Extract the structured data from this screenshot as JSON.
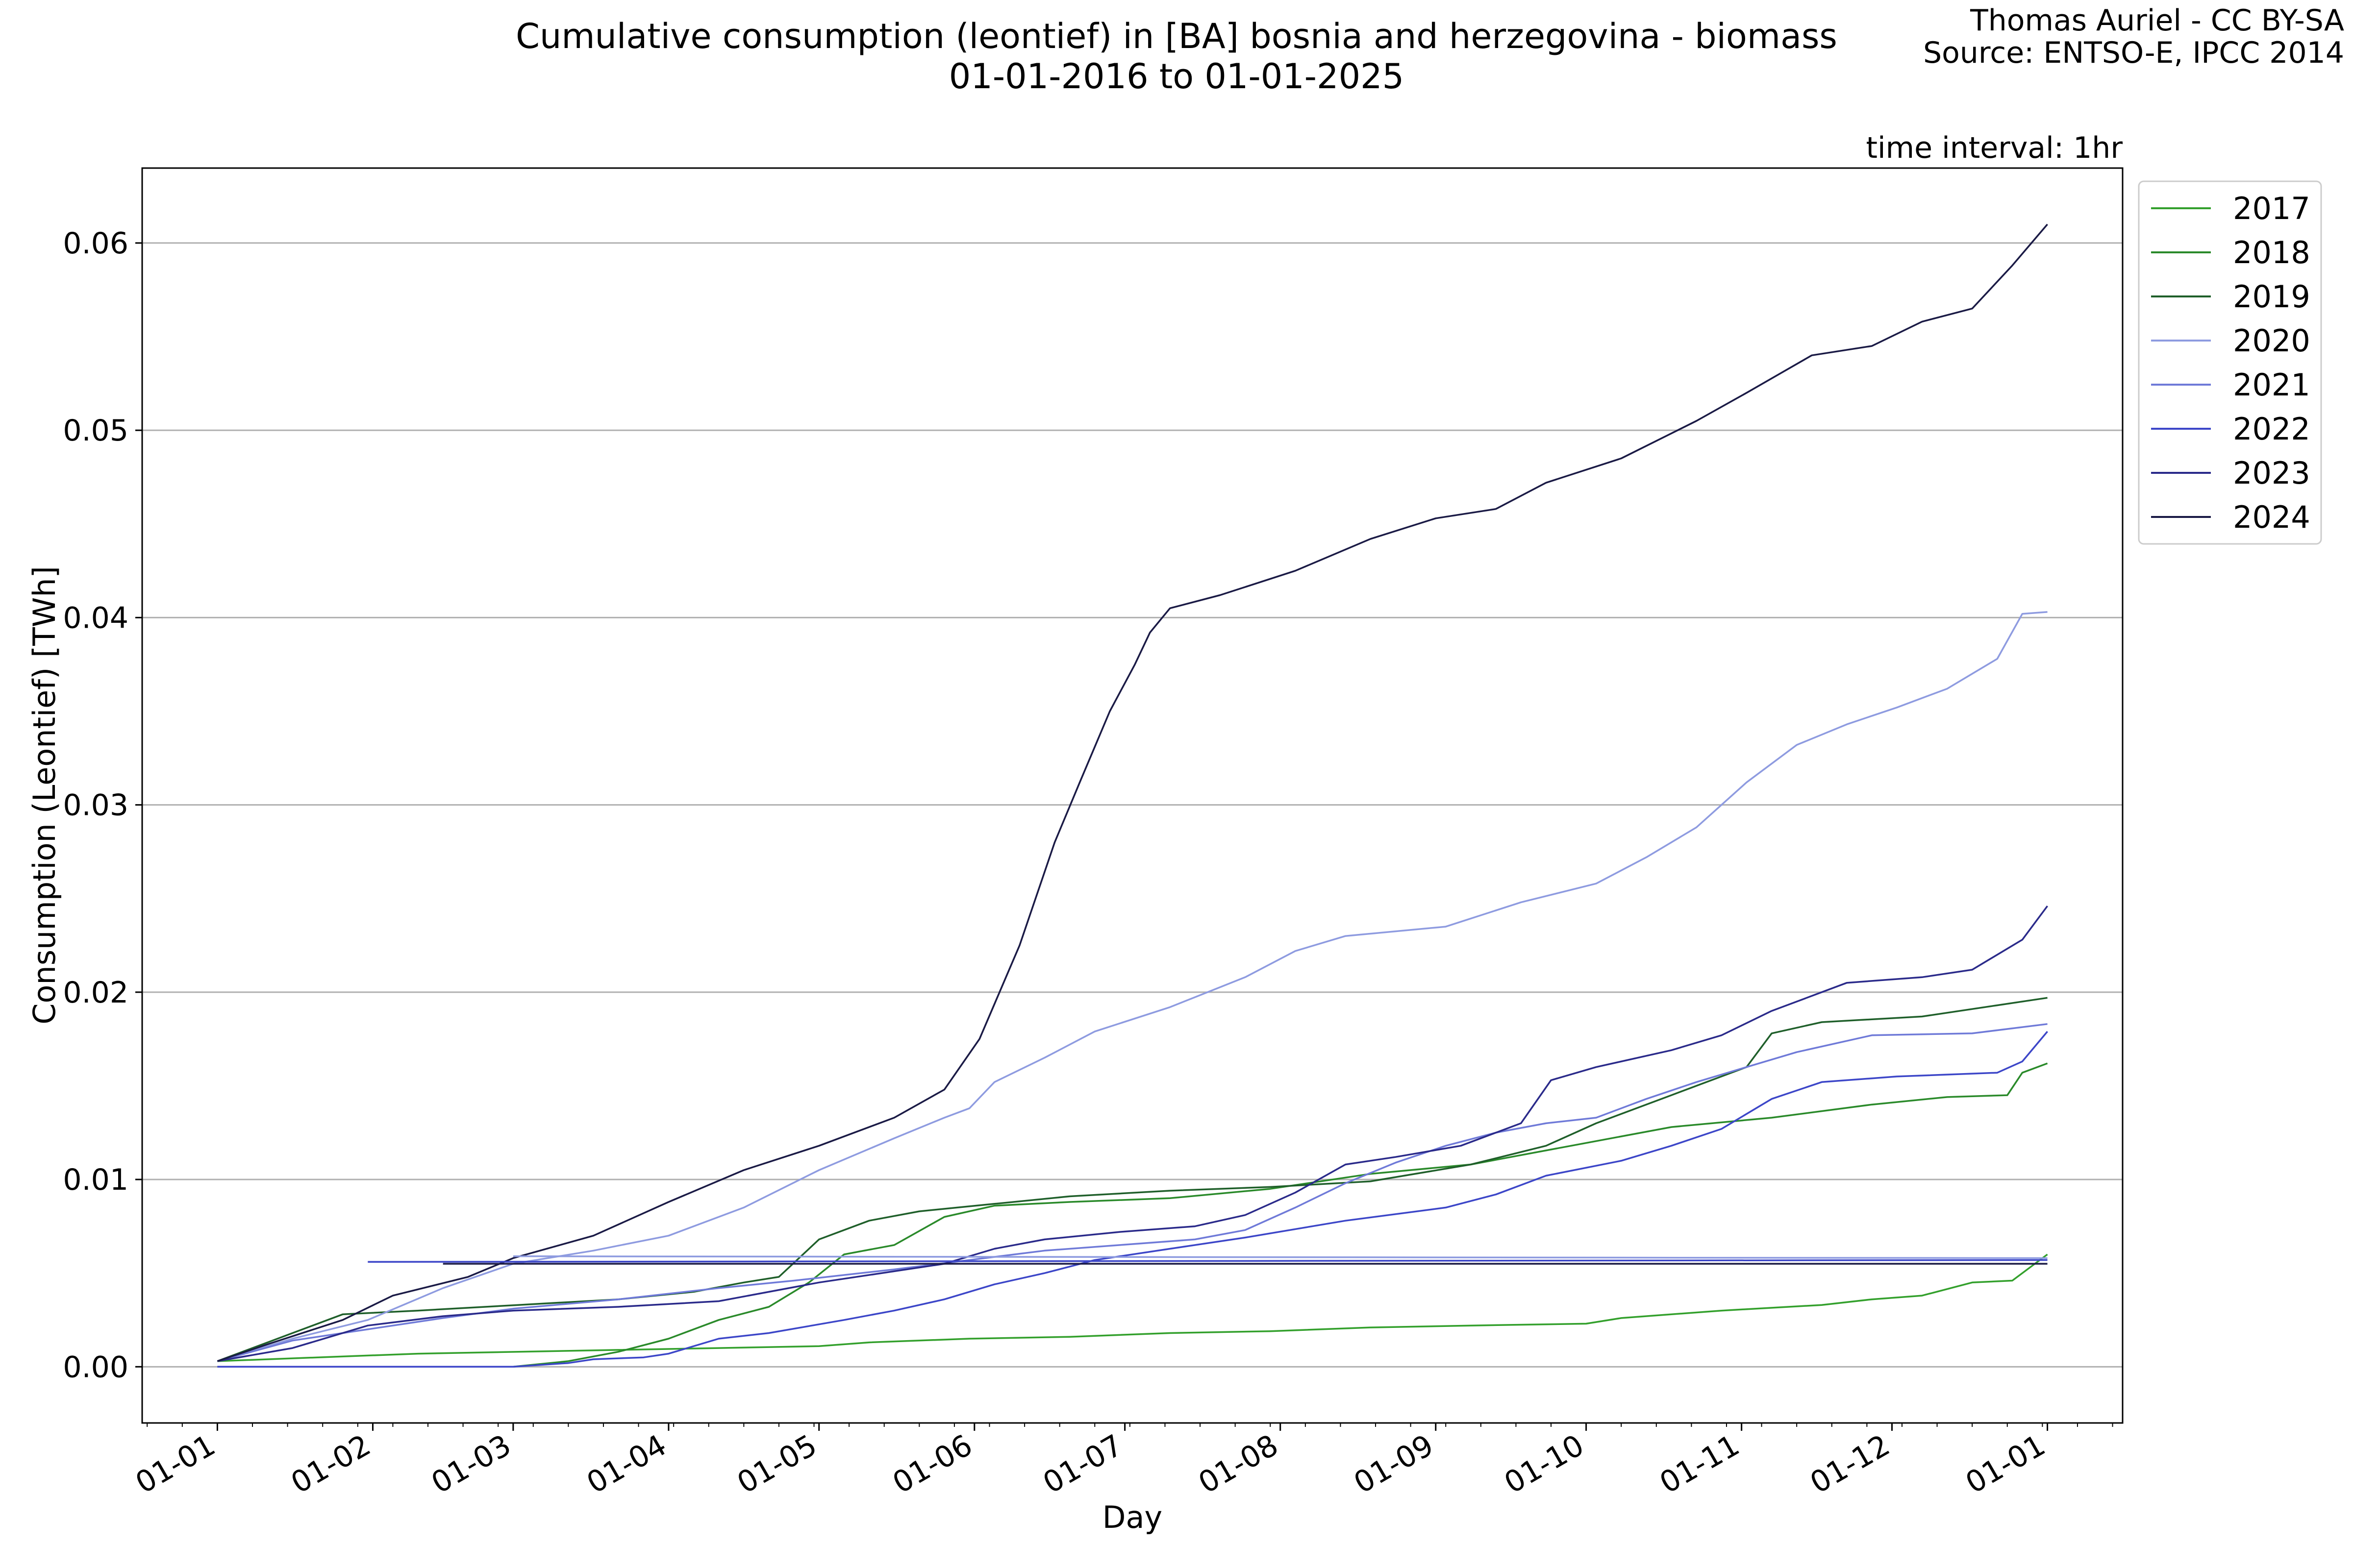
{
  "chart_data": {
    "type": "line",
    "title": "Cumulative consumption (leontief) in [BA] bosnia and herzegovina - biomass",
    "subtitle": "01-01-2016 to 01-01-2025",
    "credit": "Thomas Auriel - CC BY-SA",
    "source": "Source: ENTSO-E, IPCC 2014",
    "annotation": "time interval: 1hr",
    "xlabel": "Day",
    "ylabel": "Consumption (Leontief) [TWh]",
    "x_unit": "day of year",
    "xlim": [
      -15,
      380
    ],
    "ylim": [
      -0.003,
      0.064
    ],
    "x_ticks": [
      {
        "label": "01-01",
        "day": 0
      },
      {
        "label": "01-02",
        "day": 31
      },
      {
        "label": "01-03",
        "day": 59
      },
      {
        "label": "01-04",
        "day": 90
      },
      {
        "label": "01-05",
        "day": 120
      },
      {
        "label": "01-06",
        "day": 151
      },
      {
        "label": "01-07",
        "day": 181
      },
      {
        "label": "01-08",
        "day": 212
      },
      {
        "label": "01-09",
        "day": 243
      },
      {
        "label": "01-10",
        "day": 273
      },
      {
        "label": "01-11",
        "day": 304
      },
      {
        "label": "01-12",
        "day": 334
      },
      {
        "label": "01-01",
        "day": 365
      }
    ],
    "y_ticks": [
      {
        "label": "0.00",
        "value": 0.0
      },
      {
        "label": "0.01",
        "value": 0.01
      },
      {
        "label": "0.02",
        "value": 0.02
      },
      {
        "label": "0.03",
        "value": 0.03
      },
      {
        "label": "0.04",
        "value": 0.04
      },
      {
        "label": "0.05",
        "value": 0.05
      },
      {
        "label": "0.06",
        "value": 0.06
      }
    ],
    "grid": "horizontal",
    "legend_position": "right outside, top",
    "series": [
      {
        "name": "2017",
        "color": "#33a02c",
        "points": [
          [
            0,
            0.0003
          ],
          [
            20,
            0.0005
          ],
          [
            40,
            0.0007
          ],
          [
            60,
            0.0008
          ],
          [
            80,
            0.0009
          ],
          [
            100,
            0.001
          ],
          [
            120,
            0.0011
          ],
          [
            130,
            0.0013
          ],
          [
            150,
            0.0015
          ],
          [
            170,
            0.0016
          ],
          [
            190,
            0.0018
          ],
          [
            210,
            0.0019
          ],
          [
            230,
            0.0021
          ],
          [
            250,
            0.0022
          ],
          [
            273,
            0.0023
          ],
          [
            280,
            0.0026
          ],
          [
            300,
            0.003
          ],
          [
            320,
            0.0033
          ],
          [
            330,
            0.0036
          ],
          [
            340,
            0.0038
          ],
          [
            350,
            0.0045
          ],
          [
            358,
            0.0046
          ],
          [
            365,
            0.006
          ]
        ]
      },
      {
        "name": "2018",
        "color": "#2a8a2a",
        "points": [
          [
            0,
            0.0
          ],
          [
            30,
            0.0
          ],
          [
            59,
            0.0
          ],
          [
            70,
            0.0003
          ],
          [
            80,
            0.0008
          ],
          [
            90,
            0.0015
          ],
          [
            100,
            0.0025
          ],
          [
            110,
            0.0032
          ],
          [
            118,
            0.0045
          ],
          [
            125,
            0.006
          ],
          [
            135,
            0.0065
          ],
          [
            145,
            0.008
          ],
          [
            155,
            0.0086
          ],
          [
            170,
            0.0088
          ],
          [
            190,
            0.009
          ],
          [
            210,
            0.0095
          ],
          [
            230,
            0.0103
          ],
          [
            250,
            0.0108
          ],
          [
            270,
            0.0118
          ],
          [
            290,
            0.0128
          ],
          [
            310,
            0.0133
          ],
          [
            330,
            0.014
          ],
          [
            345,
            0.0144
          ],
          [
            357,
            0.0145
          ],
          [
            360,
            0.0157
          ],
          [
            365,
            0.0162
          ]
        ]
      },
      {
        "name": "2019",
        "color": "#1f5f2a",
        "points": [
          [
            0,
            0.0003
          ],
          [
            15,
            0.0018
          ],
          [
            25,
            0.0028
          ],
          [
            40,
            0.003
          ],
          [
            60,
            0.0033
          ],
          [
            80,
            0.0036
          ],
          [
            95,
            0.004
          ],
          [
            105,
            0.0045
          ],
          [
            112,
            0.0048
          ],
          [
            120,
            0.0068
          ],
          [
            130,
            0.0078
          ],
          [
            140,
            0.0083
          ],
          [
            155,
            0.0087
          ],
          [
            170,
            0.0091
          ],
          [
            190,
            0.0094
          ],
          [
            210,
            0.0096
          ],
          [
            230,
            0.0099
          ],
          [
            250,
            0.0108
          ],
          [
            265,
            0.0118
          ],
          [
            275,
            0.013
          ],
          [
            290,
            0.0145
          ],
          [
            305,
            0.016
          ],
          [
            310,
            0.0178
          ],
          [
            320,
            0.0184
          ],
          [
            340,
            0.0187
          ],
          [
            355,
            0.0193
          ],
          [
            365,
            0.0197
          ]
        ]
      },
      {
        "name": "2020",
        "color": "#8e9be0",
        "points": [
          [
            0,
            0.0003
          ],
          [
            15,
            0.0015
          ],
          [
            30,
            0.0025
          ],
          [
            45,
            0.0042
          ],
          [
            59,
            0.0055
          ],
          [
            75,
            0.0062
          ],
          [
            90,
            0.007
          ],
          [
            105,
            0.0085
          ],
          [
            120,
            0.0105
          ],
          [
            135,
            0.0122
          ],
          [
            145,
            0.0133
          ],
          [
            150,
            0.0138
          ],
          [
            155,
            0.0152
          ],
          [
            165,
            0.0165
          ],
          [
            175,
            0.0179
          ],
          [
            190,
            0.0192
          ],
          [
            205,
            0.0208
          ],
          [
            215,
            0.0222
          ],
          [
            225,
            0.023
          ],
          [
            245,
            0.0235
          ],
          [
            260,
            0.0248
          ],
          [
            275,
            0.0258
          ],
          [
            285,
            0.0272
          ],
          [
            295,
            0.0288
          ],
          [
            305,
            0.0312
          ],
          [
            315,
            0.0332
          ],
          [
            325,
            0.0343
          ],
          [
            335,
            0.0352
          ],
          [
            345,
            0.0362
          ],
          [
            355,
            0.0378
          ],
          [
            360,
            0.0402
          ],
          [
            365,
            0.0403
          ]
        ]
      },
      {
        "name": "2021",
        "color": "#6f7ad8",
        "points": [
          [
            0,
            0.0003
          ],
          [
            15,
            0.0014
          ],
          [
            30,
            0.002
          ],
          [
            45,
            0.0026
          ],
          [
            59,
            0.0031
          ],
          [
            80,
            0.0036
          ],
          [
            100,
            0.0042
          ],
          [
            115,
            0.0046
          ],
          [
            135,
            0.0052
          ],
          [
            150,
            0.0057
          ],
          [
            165,
            0.0062
          ],
          [
            180,
            0.0065
          ],
          [
            195,
            0.0068
          ],
          [
            205,
            0.0073
          ],
          [
            215,
            0.0085
          ],
          [
            225,
            0.0098
          ],
          [
            235,
            0.0109
          ],
          [
            245,
            0.0118
          ],
          [
            255,
            0.0125
          ],
          [
            265,
            0.013
          ],
          [
            275,
            0.0133
          ],
          [
            285,
            0.0143
          ],
          [
            295,
            0.0152
          ],
          [
            305,
            0.016
          ],
          [
            315,
            0.0168
          ],
          [
            330,
            0.0177
          ],
          [
            350,
            0.0178
          ],
          [
            365,
            0.0183
          ]
        ]
      },
      {
        "name": "2022",
        "color": "#3c46c8",
        "points": [
          [
            0,
            0.0
          ],
          [
            30,
            0.0
          ],
          [
            59,
            0.0
          ],
          [
            70,
            0.0002
          ],
          [
            75,
            0.0004
          ],
          [
            85,
            0.0005
          ],
          [
            90,
            0.0007
          ],
          [
            100,
            0.0015
          ],
          [
            110,
            0.0018
          ],
          [
            125,
            0.0025
          ],
          [
            135,
            0.003
          ],
          [
            145,
            0.0036
          ],
          [
            155,
            0.0044
          ],
          [
            165,
            0.005
          ],
          [
            175,
            0.0057
          ],
          [
            190,
            0.0063
          ],
          [
            205,
            0.0069
          ],
          [
            225,
            0.0078
          ],
          [
            245,
            0.0085
          ],
          [
            255,
            0.0092
          ],
          [
            265,
            0.0102
          ],
          [
            280,
            0.011
          ],
          [
            290,
            0.0118
          ],
          [
            300,
            0.0127
          ],
          [
            310,
            0.0143
          ],
          [
            320,
            0.0152
          ],
          [
            335,
            0.0155
          ],
          [
            355,
            0.0157
          ],
          [
            360,
            0.0163
          ],
          [
            365,
            0.0179
          ]
        ]
      },
      {
        "name": "2023",
        "color": "#2a2a8a",
        "points": [
          [
            0,
            0.0003
          ],
          [
            15,
            0.001
          ],
          [
            30,
            0.0022
          ],
          [
            45,
            0.0027
          ],
          [
            59,
            0.003
          ],
          [
            80,
            0.0032
          ],
          [
            100,
            0.0035
          ],
          [
            120,
            0.0045
          ],
          [
            135,
            0.0051
          ],
          [
            145,
            0.0055
          ],
          [
            155,
            0.0063
          ],
          [
            165,
            0.0068
          ],
          [
            180,
            0.0072
          ],
          [
            195,
            0.0075
          ],
          [
            205,
            0.0081
          ],
          [
            215,
            0.0093
          ],
          [
            225,
            0.0108
          ],
          [
            235,
            0.0112
          ],
          [
            248,
            0.0118
          ],
          [
            260,
            0.013
          ],
          [
            266,
            0.0153
          ],
          [
            275,
            0.016
          ],
          [
            290,
            0.0169
          ],
          [
            300,
            0.0177
          ],
          [
            310,
            0.019
          ],
          [
            325,
            0.0205
          ],
          [
            340,
            0.0208
          ],
          [
            350,
            0.0212
          ],
          [
            360,
            0.0228
          ],
          [
            365,
            0.0246
          ]
        ]
      },
      {
        "name": "2024",
        "color": "#1a1a45",
        "points": [
          [
            0,
            0.0003
          ],
          [
            10,
            0.0012
          ],
          [
            25,
            0.0025
          ],
          [
            35,
            0.0038
          ],
          [
            50,
            0.0048
          ],
          [
            59,
            0.0058
          ],
          [
            75,
            0.007
          ],
          [
            90,
            0.0088
          ],
          [
            105,
            0.0105
          ],
          [
            120,
            0.0118
          ],
          [
            135,
            0.0133
          ],
          [
            145,
            0.0148
          ],
          [
            152,
            0.0175
          ],
          [
            160,
            0.0225
          ],
          [
            167,
            0.028
          ],
          [
            172,
            0.0312
          ],
          [
            178,
            0.035
          ],
          [
            183,
            0.0375
          ],
          [
            186,
            0.0392
          ],
          [
            190,
            0.0405
          ],
          [
            200,
            0.0412
          ],
          [
            215,
            0.0425
          ],
          [
            230,
            0.0442
          ],
          [
            243,
            0.0453
          ],
          [
            255,
            0.0458
          ],
          [
            265,
            0.0472
          ],
          [
            280,
            0.0485
          ],
          [
            295,
            0.0505
          ],
          [
            305,
            0.052
          ],
          [
            318,
            0.054
          ],
          [
            330,
            0.0545
          ],
          [
            340,
            0.0558
          ],
          [
            350,
            0.0565
          ],
          [
            358,
            0.0588
          ],
          [
            365,
            0.061
          ]
        ]
      },
      {
        "name": "",
        "color": "#8e9be0",
        "points": [
          [
            59,
            0.0059
          ],
          [
            365,
            0.0058
          ]
        ]
      },
      {
        "name": "",
        "color": "#3c46c8",
        "points": [
          [
            30,
            0.0056
          ],
          [
            365,
            0.0057
          ]
        ]
      },
      {
        "name": "",
        "color": "#1a1a45",
        "points": [
          [
            45,
            0.0055
          ],
          [
            365,
            0.0055
          ]
        ]
      }
    ]
  }
}
